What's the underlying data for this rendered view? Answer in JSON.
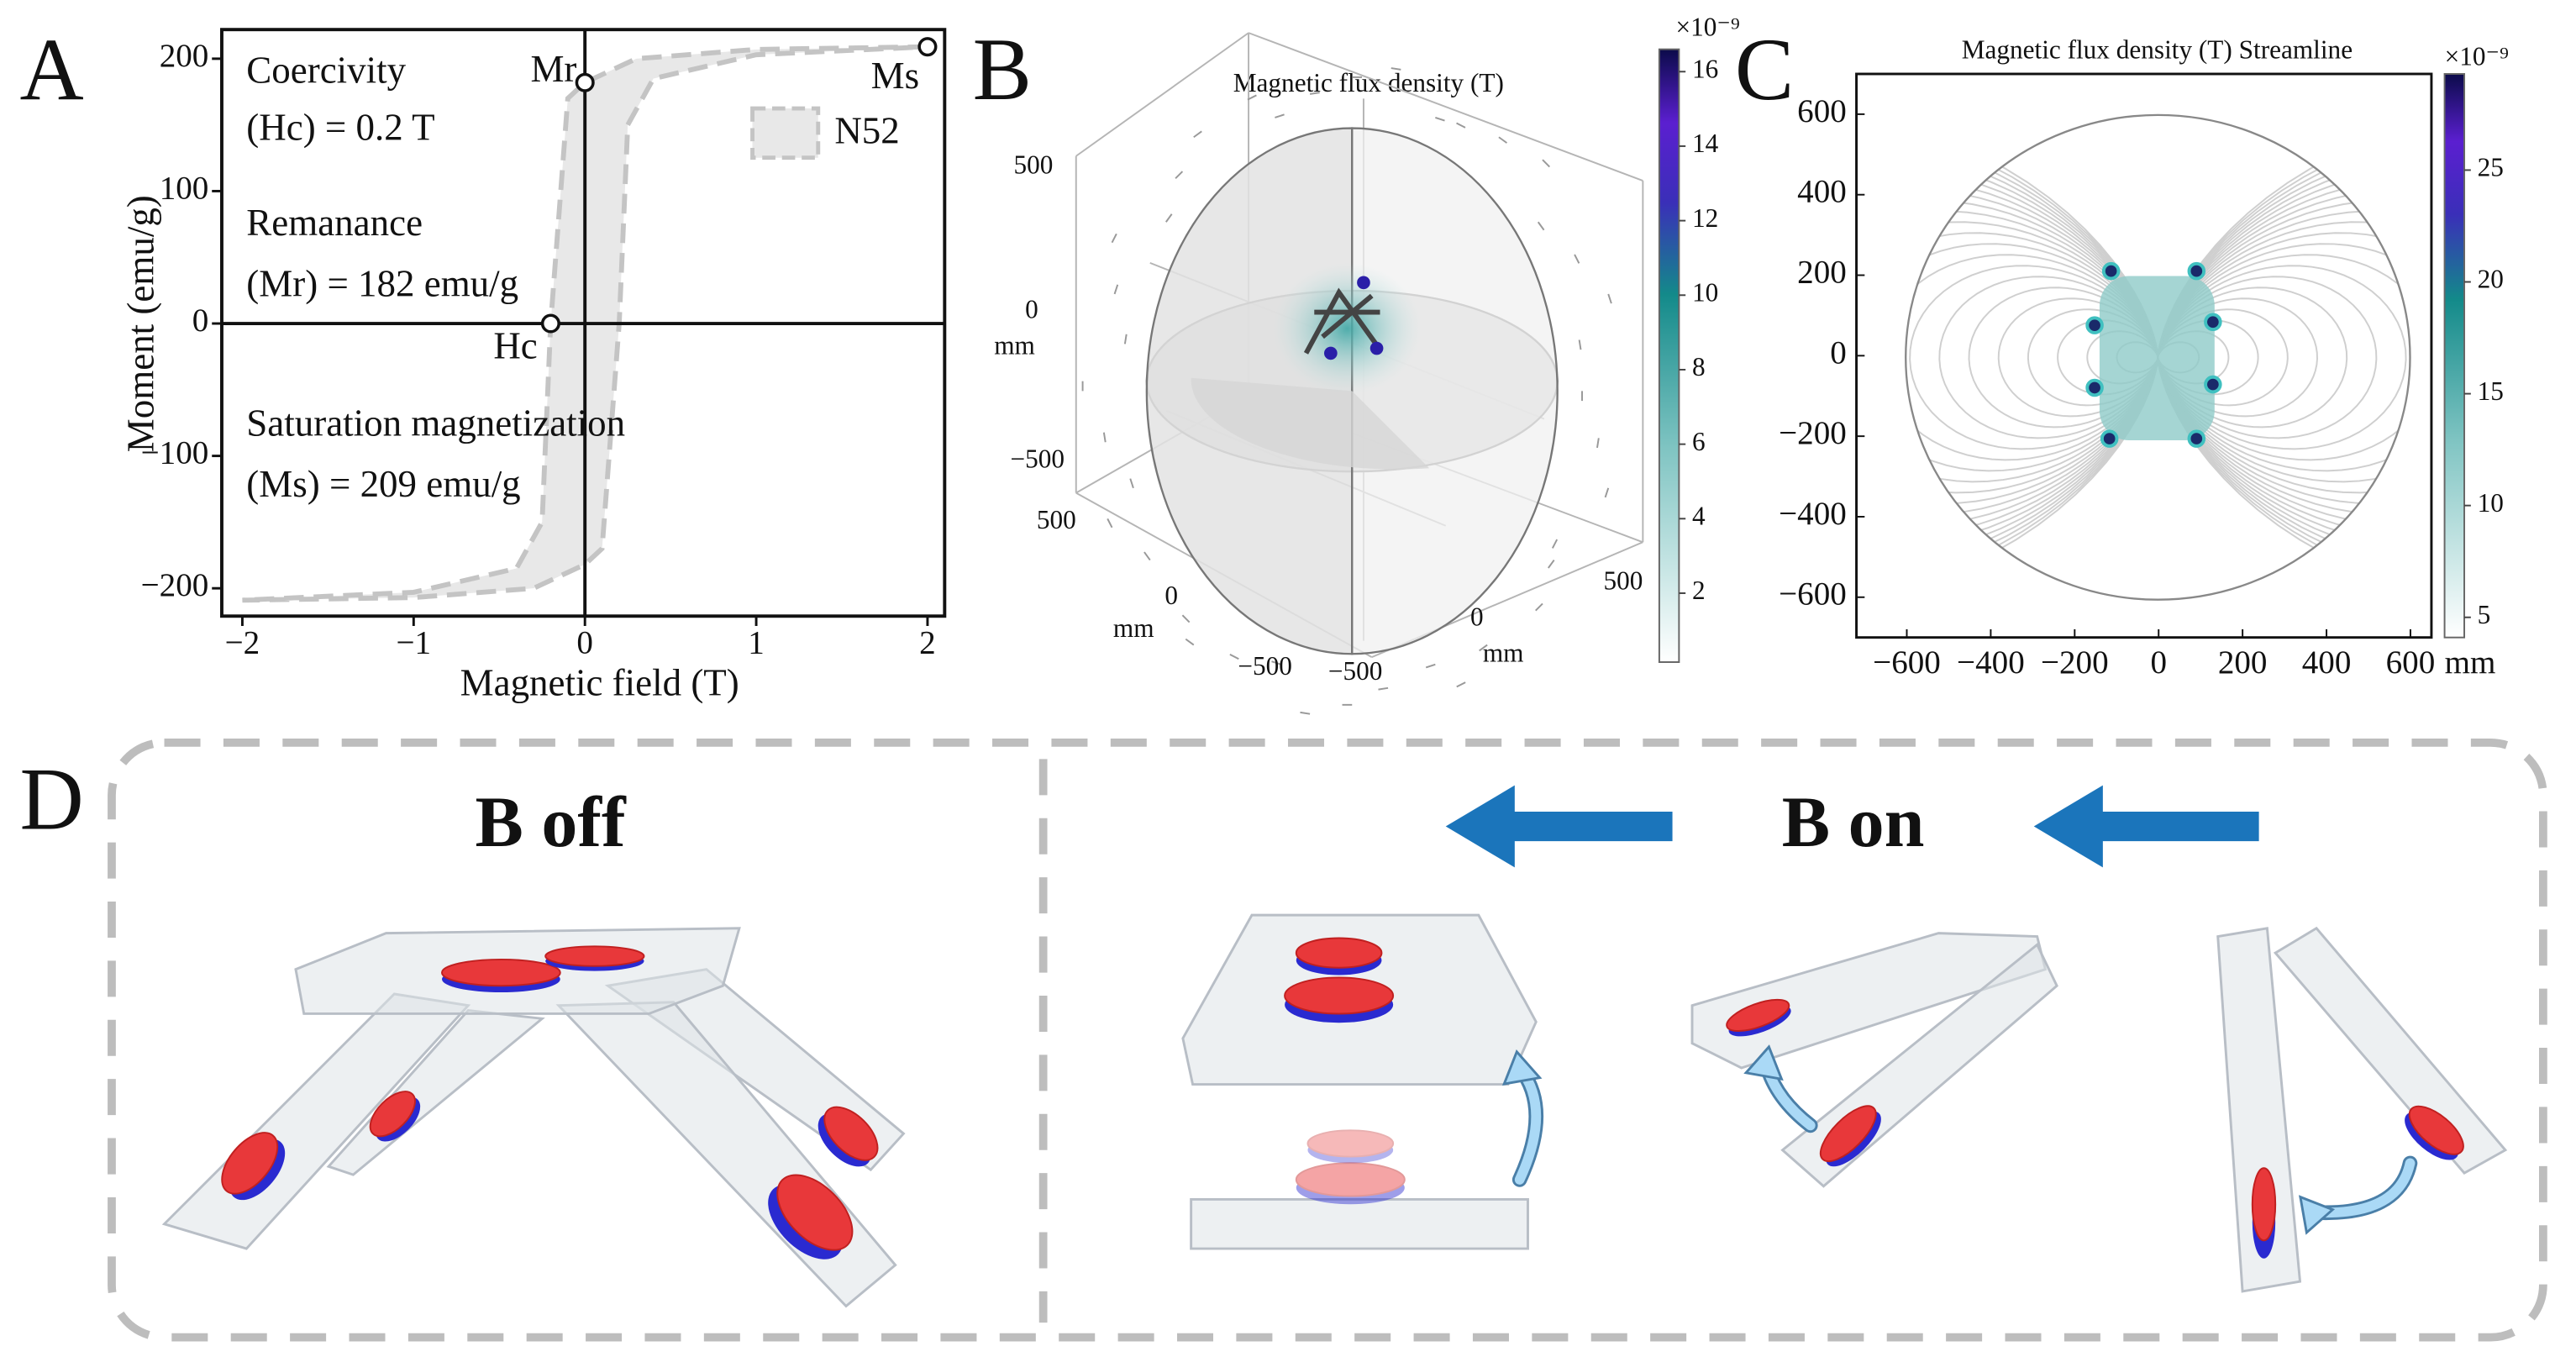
{
  "chart_data": {
    "type": "line",
    "panel_label": "A",
    "x_label": "Magnetic field (T)",
    "y_label": "Moment (emu/g)",
    "xlim": [
      -2.12,
      2.1
    ],
    "ylim": [
      -221,
      222
    ],
    "xticks": [
      {
        "value": -2,
        "label": "−2"
      },
      {
        "value": -1,
        "label": "−1"
      },
      0,
      1,
      2
    ],
    "yticks": [
      {
        "value": -200,
        "label": "−200"
      },
      {
        "value": -100,
        "label": "−100"
      },
      0,
      100,
      200
    ],
    "series": [
      {
        "name": "N52",
        "color": "#e8e8e8",
        "x": [
          2,
          1,
          0.3,
          0,
          -0.1,
          -0.2,
          -0.25,
          -0.4,
          -1,
          -2,
          -1,
          -0.3,
          0,
          0.1,
          0.2,
          0.25,
          0.4,
          1,
          2
        ],
        "values": [
          209,
          207,
          200,
          182,
          170,
          0,
          -150,
          -185,
          -203,
          -209,
          -207,
          -200,
          -182,
          -170,
          0,
          150,
          185,
          203,
          209
        ]
      }
    ],
    "annotations": [
      {
        "label": "Mr",
        "x": 0,
        "y": 182
      },
      {
        "label": "Hc",
        "x": -0.2,
        "y": 0
      },
      {
        "label": "Ms",
        "x": 2,
        "y": 209
      }
    ],
    "notes": [
      "Coercivity",
      "(Hc) = 0.2 T",
      "Remanance",
      "(Mr) = 182 emu/g",
      "Saturation magnetization",
      "(Ms) = 209 emu/g"
    ]
  },
  "panel_b": {
    "panel_label": "B",
    "title": "Magnetic flux density (T)",
    "axis_labels": [
      "500",
      "0",
      "mm",
      "−500",
      "500",
      "0",
      "mm",
      "−500",
      "−500",
      "0",
      "mm",
      "500"
    ],
    "colorbar": {
      "exponent_label": "×10⁻⁹",
      "lim": [
        0.15,
        16.6
      ],
      "ticks": [
        2,
        4,
        6,
        8,
        10,
        12,
        14,
        16
      ]
    }
  },
  "panel_c": {
    "panel_label": "C",
    "title": "Magnetic flux density (T) Streamline",
    "unit_label": "mm",
    "xlim": [
      -720,
      650
    ],
    "ylim": [
      -700,
      700
    ],
    "xticks": [
      {
        "value": -600,
        "label": "−600"
      },
      {
        "value": -400,
        "label": "−400"
      },
      {
        "value": -200,
        "label": "−200"
      },
      0,
      200,
      400,
      600
    ],
    "yticks": [
      {
        "value": -600,
        "label": "−600"
      },
      {
        "value": -400,
        "label": "−400"
      },
      {
        "value": -200,
        "label": "−200"
      },
      0,
      200,
      400,
      600
    ],
    "colorbar": {
      "exponent_label": "×10⁻⁹",
      "lim": [
        4.1,
        29.3
      ],
      "ticks": [
        5,
        10,
        15,
        20,
        25
      ]
    }
  },
  "panel_d": {
    "panel_label": "D",
    "left_title": "B off",
    "right_title": "B on"
  }
}
